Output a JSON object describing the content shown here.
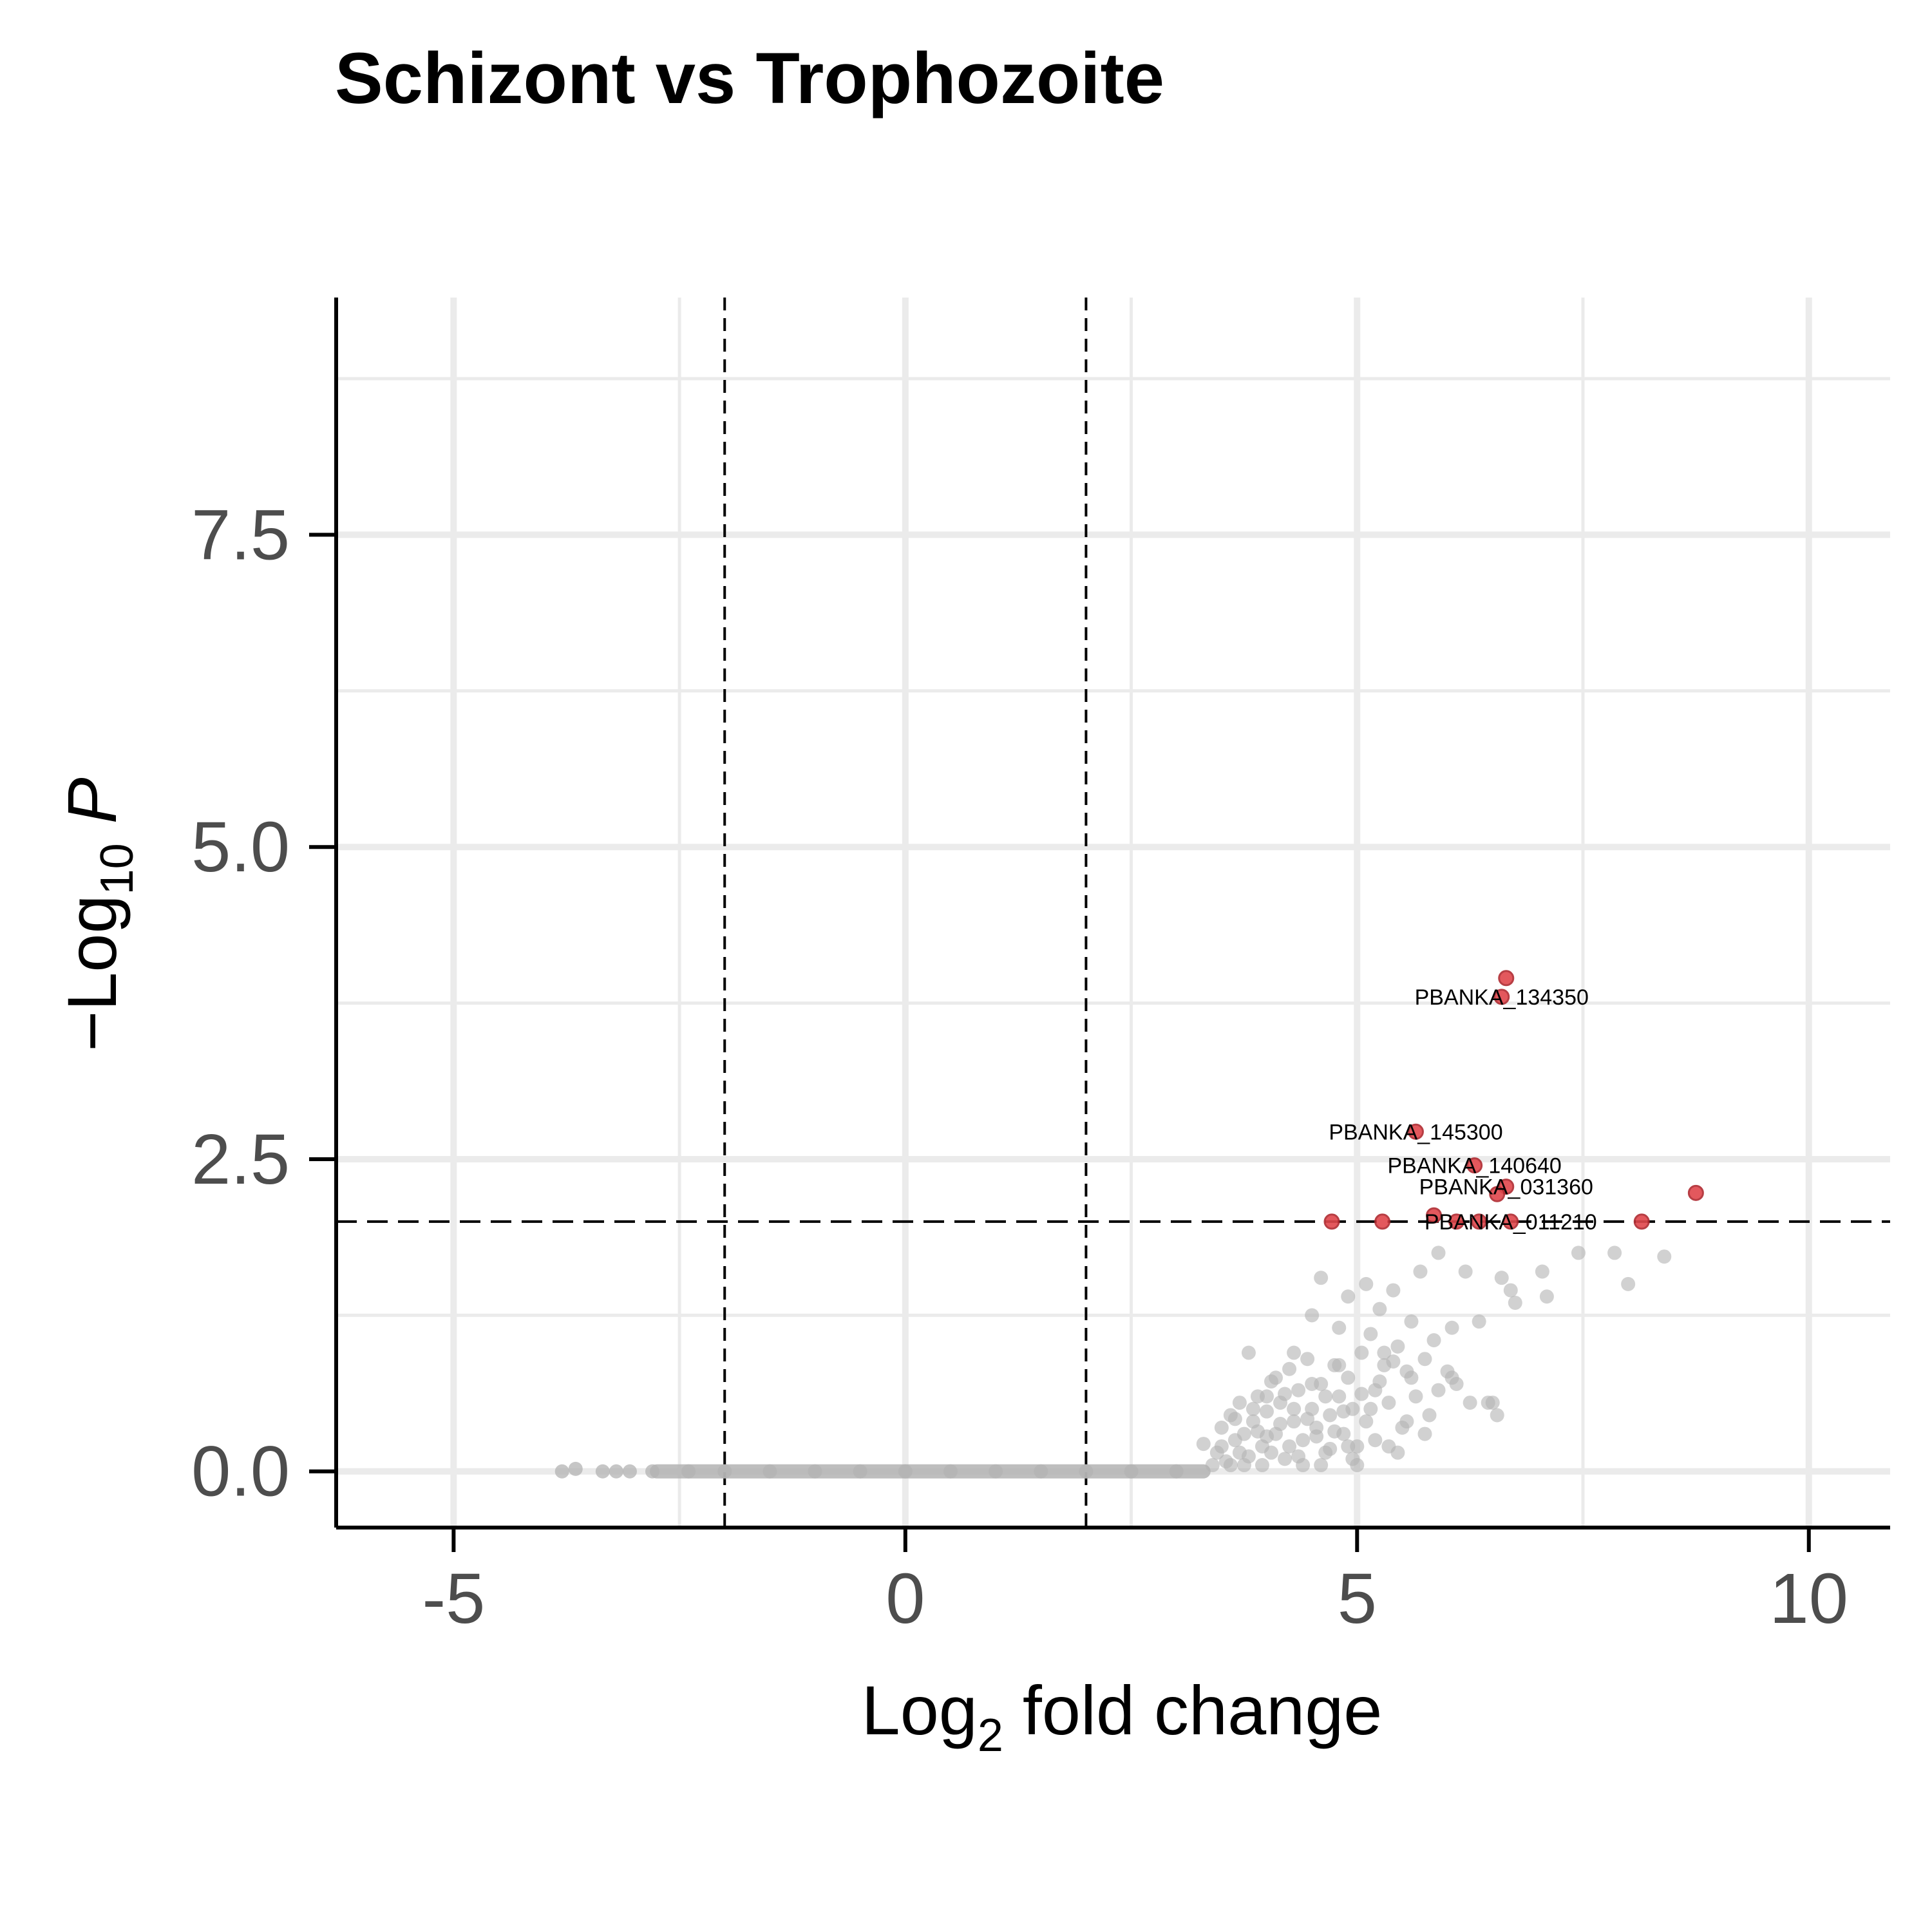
{
  "chart_data": {
    "type": "scatter",
    "title": "Schizont vs Trophozoite",
    "xlabel": {
      "base": "Log",
      "sub": "2",
      "rest": " fold change"
    },
    "ylabel": {
      "prefix": "−Log",
      "sub": "10",
      "italic": "P"
    },
    "xlim": [
      -6.3,
      10.9
    ],
    "ylim": [
      -0.45,
      9.4
    ],
    "x_ticks": [
      -5,
      0,
      5,
      10
    ],
    "x_tick_labels": [
      "-5",
      "0",
      "5",
      "10"
    ],
    "y_ticks": [
      0,
      2.5,
      5,
      7.5
    ],
    "y_tick_labels": [
      "0.0",
      "2.5",
      "5.0",
      "7.5"
    ],
    "grid": true,
    "legend": "none",
    "thresholds": {
      "fc_cutoff": [
        -2,
        2
      ],
      "p_cutoff": 2
    },
    "colors": {
      "significant": "#e0474c",
      "not_significant": "#b3b3b3",
      "grid": "#ebebeb",
      "axis": "#000000"
    },
    "significant_points": [
      {
        "x": 6.65,
        "y": 3.95
      },
      {
        "x": 6.6,
        "y": 3.8
      },
      {
        "x": 5.65,
        "y": 2.72
      },
      {
        "x": 6.3,
        "y": 2.45
      },
      {
        "x": 6.65,
        "y": 2.28
      },
      {
        "x": 6.55,
        "y": 2.22
      },
      {
        "x": 8.75,
        "y": 2.23
      },
      {
        "x": 5.85,
        "y": 2.05
      },
      {
        "x": 4.72,
        "y": 2.0
      },
      {
        "x": 5.28,
        "y": 2.0
      },
      {
        "x": 6.1,
        "y": 2.0
      },
      {
        "x": 6.35,
        "y": 2.0
      },
      {
        "x": 6.7,
        "y": 2.0
      },
      {
        "x": 8.15,
        "y": 2.0
      }
    ],
    "labels": [
      {
        "text": "PBANKA_134350",
        "x": 6.6,
        "y": 3.8
      },
      {
        "text": "PBANKA_145300",
        "x": 5.65,
        "y": 2.72
      },
      {
        "text": "PBANKA_140640",
        "x": 6.3,
        "y": 2.45
      },
      {
        "text": "PBANKA_031360",
        "x": 6.65,
        "y": 2.28
      },
      {
        "text": "PBANKA_011210",
        "x": 6.7,
        "y": 2.0
      }
    ],
    "baseline_points": [
      {
        "x": -3.8,
        "y": 0.0
      },
      {
        "x": -3.65,
        "y": 0.02
      },
      {
        "x": -3.35,
        "y": 0.0
      },
      {
        "x": -3.2,
        "y": 0.0
      },
      {
        "x": -3.05,
        "y": 0.0
      },
      {
        "x": -2.8,
        "y": 0.0
      },
      {
        "x": -2.4,
        "y": 0.0
      },
      {
        "x": -2.0,
        "y": 0.0
      },
      {
        "x": -1.5,
        "y": 0.0
      },
      {
        "x": -1.0,
        "y": 0.0
      },
      {
        "x": -0.5,
        "y": 0.0
      },
      {
        "x": 0.0,
        "y": 0.0
      },
      {
        "x": 0.5,
        "y": 0.0
      },
      {
        "x": 1.0,
        "y": 0.0
      },
      {
        "x": 1.5,
        "y": 0.0
      },
      {
        "x": 2.0,
        "y": 0.0
      },
      {
        "x": 2.5,
        "y": 0.0
      },
      {
        "x": 3.0,
        "y": 0.0
      }
    ],
    "baseline_segment": {
      "x_start": -2.75,
      "x_end": 3.3,
      "y": 0.0
    },
    "nonsig_points": [
      {
        "x": 3.3,
        "y": 0.22
      },
      {
        "x": 3.45,
        "y": 0.15
      },
      {
        "x": 3.5,
        "y": 0.35
      },
      {
        "x": 3.55,
        "y": 0.08
      },
      {
        "x": 3.6,
        "y": 0.45
      },
      {
        "x": 3.65,
        "y": 0.25
      },
      {
        "x": 3.7,
        "y": 0.55
      },
      {
        "x": 3.75,
        "y": 0.3
      },
      {
        "x": 3.8,
        "y": 0.12
      },
      {
        "x": 3.85,
        "y": 0.4
      },
      {
        "x": 3.9,
        "y": 0.6
      },
      {
        "x": 3.95,
        "y": 0.2
      },
      {
        "x": 4.0,
        "y": 0.48
      },
      {
        "x": 4.05,
        "y": 0.72
      },
      {
        "x": 4.1,
        "y": 0.3
      },
      {
        "x": 4.15,
        "y": 0.55
      },
      {
        "x": 4.2,
        "y": 0.1
      },
      {
        "x": 4.25,
        "y": 0.82
      },
      {
        "x": 4.3,
        "y": 0.4
      },
      {
        "x": 4.35,
        "y": 0.65
      },
      {
        "x": 4.4,
        "y": 0.25
      },
      {
        "x": 4.45,
        "y": 0.9
      },
      {
        "x": 4.5,
        "y": 0.5
      },
      {
        "x": 4.55,
        "y": 0.35
      },
      {
        "x": 4.6,
        "y": 0.7
      },
      {
        "x": 4.65,
        "y": 0.15
      },
      {
        "x": 4.7,
        "y": 0.45
      },
      {
        "x": 4.75,
        "y": 0.85
      },
      {
        "x": 4.8,
        "y": 0.6
      },
      {
        "x": 4.85,
        "y": 0.3
      },
      {
        "x": 4.9,
        "y": 0.75
      },
      {
        "x": 4.95,
        "y": 0.5
      },
      {
        "x": 5.0,
        "y": 0.2
      },
      {
        "x": 5.05,
        "y": 0.95
      },
      {
        "x": 5.1,
        "y": 0.4
      },
      {
        "x": 5.15,
        "y": 1.1
      },
      {
        "x": 5.2,
        "y": 0.65
      },
      {
        "x": 5.25,
        "y": 1.3
      },
      {
        "x": 5.3,
        "y": 0.85
      },
      {
        "x": 5.35,
        "y": 0.55
      },
      {
        "x": 5.4,
        "y": 1.45
      },
      {
        "x": 5.45,
        "y": 1.0
      },
      {
        "x": 5.5,
        "y": 0.35
      },
      {
        "x": 5.55,
        "y": 0.8
      },
      {
        "x": 5.6,
        "y": 1.2
      },
      {
        "x": 5.65,
        "y": 0.6
      },
      {
        "x": 5.7,
        "y": 1.6
      },
      {
        "x": 5.75,
        "y": 0.9
      },
      {
        "x": 5.8,
        "y": 0.45
      },
      {
        "x": 5.85,
        "y": 1.05
      },
      {
        "x": 5.9,
        "y": 1.75
      },
      {
        "x": 6.0,
        "y": 0.8
      },
      {
        "x": 6.05,
        "y": 1.15
      },
      {
        "x": 6.1,
        "y": 0.7
      },
      {
        "x": 6.2,
        "y": 1.6
      },
      {
        "x": 6.25,
        "y": 0.55
      },
      {
        "x": 6.35,
        "y": 1.2
      },
      {
        "x": 6.45,
        "y": 0.55
      },
      {
        "x": 6.55,
        "y": 0.45
      },
      {
        "x": 6.6,
        "y": 1.55
      },
      {
        "x": 6.7,
        "y": 1.45
      },
      {
        "x": 6.75,
        "y": 1.35
      },
      {
        "x": 7.05,
        "y": 1.6
      },
      {
        "x": 7.1,
        "y": 1.4
      },
      {
        "x": 7.45,
        "y": 1.75
      },
      {
        "x": 7.85,
        "y": 1.75
      },
      {
        "x": 8.0,
        "y": 1.5
      },
      {
        "x": 8.4,
        "y": 1.72
      },
      {
        "x": 4.6,
        "y": 1.55
      },
      {
        "x": 4.9,
        "y": 1.4
      },
      {
        "x": 5.1,
        "y": 1.5
      },
      {
        "x": 4.5,
        "y": 1.25
      },
      {
        "x": 4.8,
        "y": 1.15
      },
      {
        "x": 3.8,
        "y": 0.95
      },
      {
        "x": 4.1,
        "y": 0.75
      },
      {
        "x": 4.3,
        "y": 0.95
      },
      {
        "x": 5.3,
        "y": 0.95
      },
      {
        "x": 5.6,
        "y": 0.75
      },
      {
        "x": 6.05,
        "y": 0.75
      },
      {
        "x": 5.0,
        "y": 0.05
      },
      {
        "x": 5.2,
        "y": 0.25
      },
      {
        "x": 4.95,
        "y": 0.1
      },
      {
        "x": 4.4,
        "y": 0.05
      },
      {
        "x": 3.95,
        "y": 0.05
      },
      {
        "x": 3.6,
        "y": 0.05
      },
      {
        "x": 4.05,
        "y": 0.15
      },
      {
        "x": 4.25,
        "y": 0.2
      },
      {
        "x": 4.55,
        "y": 0.28
      },
      {
        "x": 4.7,
        "y": 0.18
      },
      {
        "x": 5.45,
        "y": 0.15
      },
      {
        "x": 5.55,
        "y": 0.4
      },
      {
        "x": 5.75,
        "y": 0.3
      },
      {
        "x": 5.9,
        "y": 0.65
      },
      {
        "x": 6.5,
        "y": 0.55
      },
      {
        "x": 3.4,
        "y": 0.05
      },
      {
        "x": 3.5,
        "y": 0.2
      },
      {
        "x": 3.7,
        "y": 0.15
      },
      {
        "x": 3.9,
        "y": 0.32
      },
      {
        "x": 4.15,
        "y": 0.38
      },
      {
        "x": 4.45,
        "y": 0.42
      },
      {
        "x": 4.65,
        "y": 0.6
      },
      {
        "x": 4.85,
        "y": 0.48
      },
      {
        "x": 5.05,
        "y": 0.62
      },
      {
        "x": 5.25,
        "y": 0.72
      },
      {
        "x": 5.4,
        "y": 0.88
      },
      {
        "x": 4.2,
        "y": 0.62
      },
      {
        "x": 3.85,
        "y": 0.5
      },
      {
        "x": 4.0,
        "y": 0.28
      },
      {
        "x": 4.35,
        "y": 0.12
      },
      {
        "x": 4.75,
        "y": 0.32
      },
      {
        "x": 5.15,
        "y": 0.5
      },
      {
        "x": 4.6,
        "y": 0.05
      },
      {
        "x": 4.9,
        "y": 0.2
      },
      {
        "x": 3.75,
        "y": 0.05
      },
      {
        "x": 4.5,
        "y": 0.7
      },
      {
        "x": 4.0,
        "y": 0.6
      },
      {
        "x": 3.65,
        "y": 0.42
      },
      {
        "x": 5.35,
        "y": 0.2
      },
      {
        "x": 4.3,
        "y": 0.5
      },
      {
        "x": 4.8,
        "y": 0.85
      }
    ]
  }
}
